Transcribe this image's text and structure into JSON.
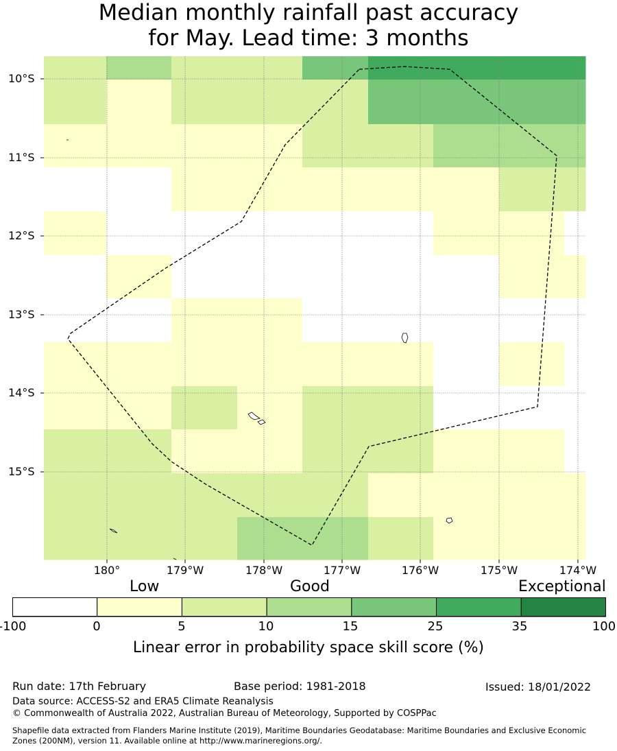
{
  "title": {
    "line1": "Median monthly rainfall past accuracy",
    "line2": "for May. Lead time: 3 months"
  },
  "map": {
    "lat_labels": [
      "10°S",
      "11°S",
      "12°S",
      "13°S",
      "14°S",
      "15°S"
    ],
    "lon_labels": [
      "180°",
      "179°W",
      "178°W",
      "177°W",
      "176°W",
      "175°W",
      "174°W"
    ],
    "cell_colors": {
      "white": "#ffffff",
      "lt5": "#ffffcc",
      "lt10": "#d9f0a3",
      "lt15": "#addd8e",
      "lt25": "#78c679",
      "lt35": "#41ab5d",
      "max": "#238443"
    }
  },
  "colorbar": {
    "categories": [
      "Low",
      "Good",
      "Exceptional"
    ],
    "ticks": [
      "-100",
      "0",
      "5",
      "10",
      "15",
      "25",
      "35",
      "100"
    ],
    "colors": [
      "#ffffff",
      "#ffffcc",
      "#d9f0a3",
      "#addd8e",
      "#78c679",
      "#41ab5d",
      "#238443"
    ],
    "label": "Linear error in probability space skill score (%)"
  },
  "footer": {
    "run_date": "Run date: 17th February",
    "base_period": "Base period: 1981-2018",
    "issued": "Issued: 18/01/2022",
    "data_source": "Data source: ACCESS-S2 and ERA5 Climate Reanalysis",
    "copyright": "© Commonwealth of Australia 2022, Australian Bureau of Meteorology, Supported by COSPPac",
    "shapefile_line1": "Shapefile data extracted from Flanders Marine Institute (2019), Maritime Boundaries Geodatabase: Maritime Boundaries and Exclusive Economic",
    "shapefile_line2": "Zones (200NM), version 11. Available online at http://www.marineregions.org/."
  }
}
